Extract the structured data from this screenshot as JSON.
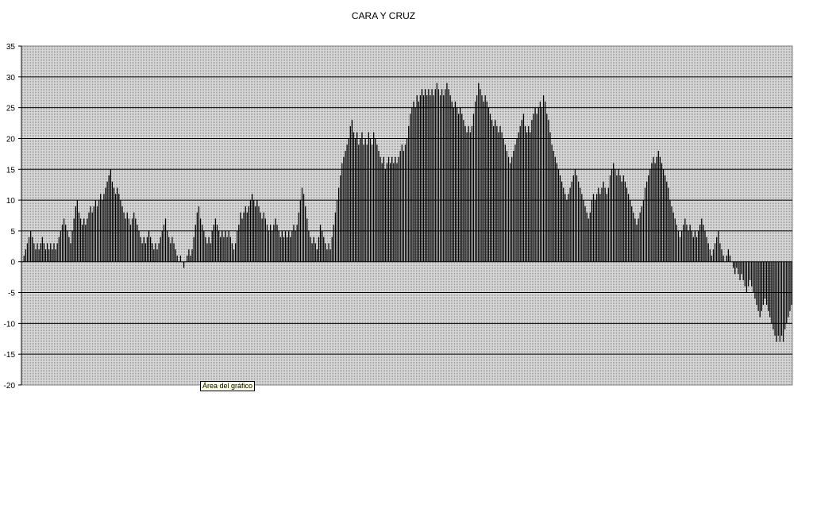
{
  "chart_data": {
    "type": "bar",
    "title": "CARA Y CRUZ",
    "xlabel": "",
    "ylabel": "",
    "ylim": [
      -20,
      35
    ],
    "yticks": [
      "35",
      "30",
      "25",
      "20",
      "15",
      "10",
      "5",
      "0",
      "-5",
      "-10",
      "-15",
      "-20"
    ],
    "grid": true,
    "legend": "none",
    "colors": {
      "bar": "#000000",
      "plot_background": "#c0c0c0",
      "gridline": "#000000"
    },
    "values": [
      0,
      1,
      2,
      3,
      4,
      5,
      4,
      3,
      2,
      3,
      2,
      3,
      4,
      3,
      2,
      3,
      2,
      3,
      2,
      3,
      2,
      3,
      4,
      5,
      6,
      7,
      6,
      5,
      4,
      3,
      5,
      7,
      9,
      10,
      8,
      7,
      6,
      7,
      6,
      7,
      8,
      9,
      8,
      9,
      10,
      9,
      10,
      11,
      10,
      11,
      12,
      13,
      14,
      15,
      13,
      12,
      11,
      12,
      11,
      10,
      9,
      8,
      7,
      8,
      7,
      6,
      7,
      8,
      7,
      6,
      5,
      4,
      3,
      4,
      3,
      4,
      5,
      4,
      3,
      2,
      3,
      2,
      3,
      4,
      5,
      6,
      7,
      5,
      4,
      3,
      4,
      3,
      2,
      1,
      0,
      1,
      0,
      -1,
      0,
      1,
      2,
      1,
      2,
      4,
      6,
      8,
      9,
      7,
      6,
      5,
      4,
      3,
      4,
      3,
      5,
      6,
      7,
      6,
      5,
      4,
      5,
      4,
      5,
      4,
      5,
      4,
      3,
      2,
      3,
      5,
      6,
      8,
      7,
      8,
      9,
      8,
      9,
      10,
      11,
      10,
      9,
      10,
      9,
      8,
      7,
      8,
      7,
      6,
      5,
      6,
      5,
      6,
      7,
      6,
      5,
      4,
      5,
      4,
      5,
      4,
      5,
      4,
      5,
      6,
      5,
      6,
      8,
      10,
      12,
      11,
      9,
      7,
      5,
      4,
      3,
      4,
      3,
      2,
      4,
      6,
      5,
      4,
      3,
      2,
      3,
      2,
      4,
      6,
      8,
      10,
      12,
      14,
      16,
      17,
      18,
      19,
      20,
      22,
      23,
      21,
      20,
      21,
      19,
      20,
      21,
      19,
      20,
      19,
      21,
      20,
      19,
      21,
      20,
      19,
      18,
      17,
      16,
      17,
      15,
      16,
      17,
      16,
      17,
      16,
      17,
      16,
      17,
      18,
      19,
      18,
      19,
      20,
      22,
      24,
      25,
      26,
      25,
      27,
      26,
      27,
      28,
      27,
      28,
      27,
      28,
      27,
      28,
      27,
      28,
      29,
      28,
      27,
      28,
      27,
      28,
      29,
      28,
      27,
      26,
      25,
      26,
      25,
      24,
      25,
      24,
      23,
      22,
      21,
      22,
      21,
      22,
      24,
      26,
      27,
      29,
      28,
      27,
      26,
      27,
      26,
      25,
      24,
      23,
      22,
      23,
      22,
      21,
      22,
      21,
      20,
      19,
      18,
      17,
      16,
      17,
      18,
      19,
      20,
      21,
      22,
      23,
      24,
      22,
      21,
      22,
      21,
      23,
      24,
      25,
      24,
      25,
      26,
      25,
      27,
      26,
      24,
      23,
      21,
      19,
      18,
      17,
      16,
      15,
      14,
      13,
      12,
      11,
      10,
      11,
      12,
      13,
      14,
      15,
      14,
      13,
      12,
      11,
      10,
      9,
      8,
      7,
      8,
      10,
      11,
      10,
      11,
      12,
      11,
      12,
      13,
      12,
      11,
      12,
      14,
      15,
      16,
      15,
      14,
      15,
      14,
      13,
      14,
      13,
      12,
      11,
      10,
      9,
      8,
      7,
      6,
      7,
      8,
      9,
      10,
      12,
      13,
      14,
      15,
      16,
      17,
      16,
      17,
      18,
      17,
      16,
      15,
      14,
      13,
      12,
      10,
      9,
      8,
      7,
      6,
      5,
      4,
      5,
      6,
      7,
      6,
      5,
      6,
      5,
      4,
      5,
      4,
      5,
      6,
      7,
      6,
      5,
      4,
      3,
      2,
      1,
      2,
      3,
      4,
      5,
      3,
      2,
      1,
      0,
      1,
      2,
      1,
      0,
      -1,
      -2,
      -1,
      -2,
      -3,
      -2,
      -3,
      -4,
      -5,
      -4,
      -3,
      -4,
      -5,
      -6,
      -7,
      -8,
      -9,
      -8,
      -7,
      -6,
      -7,
      -8,
      -9,
      -10,
      -11,
      -12,
      -13,
      -12,
      -13,
      -12,
      -13,
      -11,
      -10,
      -9,
      -8,
      -7
    ]
  },
  "tooltip": "Área del gráfico"
}
